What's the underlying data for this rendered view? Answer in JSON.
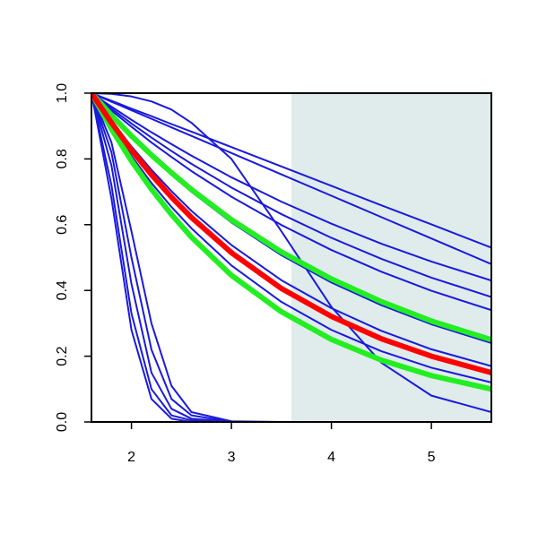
{
  "chart_data": {
    "type": "line",
    "x": [
      1.6,
      1.8,
      2.0,
      2.2,
      2.4,
      2.6,
      3.0,
      3.5,
      4.0,
      4.5,
      5.0,
      5.6
    ],
    "xlim": [
      1.6,
      5.6
    ],
    "ylim": [
      0,
      1
    ],
    "xticks": [
      2,
      3,
      4,
      5
    ],
    "yticks": [
      {
        "value": 0,
        "label": "0.0"
      },
      {
        "value": 0.2,
        "label": "0.2"
      },
      {
        "value": 0.4,
        "label": "0.4"
      },
      {
        "value": 0.6,
        "label": "0.6"
      },
      {
        "value": 0.8,
        "label": "0.8"
      },
      {
        "value": 1,
        "label": "1.0"
      }
    ],
    "shaded_region": {
      "x": [
        3.6,
        5.6
      ],
      "color": "#dfeceb"
    },
    "series": [
      {
        "color": "#1a1adb",
        "values": [
          1,
          0.78,
          0.42,
          0.15,
          0.04,
          0.01,
          0,
          0,
          0,
          0,
          0,
          0
        ]
      },
      {
        "color": "#1a1adb",
        "values": [
          1,
          0.82,
          0.5,
          0.22,
          0.07,
          0.02,
          0,
          0,
          0,
          0,
          0,
          0
        ]
      },
      {
        "color": "#1a1adb",
        "values": [
          1,
          0.72,
          0.33,
          0.1,
          0.02,
          0.005,
          0,
          0,
          0,
          0,
          0,
          0
        ]
      },
      {
        "color": "#1a1adb",
        "values": [
          1,
          0.85,
          0.58,
          0.3,
          0.11,
          0.03,
          0.002,
          0,
          0,
          0,
          0,
          0
        ]
      },
      {
        "color": "#1a1adb",
        "values": [
          1,
          0.68,
          0.28,
          0.07,
          0.01,
          0,
          0,
          0,
          0,
          0,
          0,
          0
        ]
      },
      {
        "color": "#1a1adb",
        "values": [
          1,
          0.977,
          0.953,
          0.93,
          0.906,
          0.883,
          0.836,
          0.777,
          0.718,
          0.659,
          0.601,
          0.53
        ]
      },
      {
        "color": "#1a1adb",
        "values": [
          1,
          0.974,
          0.948,
          0.922,
          0.896,
          0.87,
          0.818,
          0.753,
          0.688,
          0.623,
          0.558,
          0.48
        ]
      },
      {
        "color": "#1a1adb",
        "values": [
          1,
          0.959,
          0.919,
          0.881,
          0.845,
          0.81,
          0.744,
          0.67,
          0.603,
          0.542,
          0.488,
          0.43
        ]
      },
      {
        "color": "#1a1adb",
        "values": [
          1,
          0.953,
          0.908,
          0.865,
          0.824,
          0.785,
          0.713,
          0.632,
          0.56,
          0.496,
          0.439,
          0.38
        ]
      },
      {
        "color": "#1a1adb",
        "values": [
          1,
          0.947,
          0.898,
          0.85,
          0.806,
          0.763,
          0.685,
          0.599,
          0.523,
          0.457,
          0.399,
          0.34
        ]
      },
      {
        "color": "#1a1adb",
        "values": [
          1,
          0.931,
          0.867,
          0.807,
          0.752,
          0.7,
          0.607,
          0.507,
          0.424,
          0.355,
          0.297,
          0.24
        ]
      },
      {
        "color": "#1a1adb",
        "values": [
          1,
          0.915,
          0.838,
          0.767,
          0.702,
          0.642,
          0.538,
          0.431,
          0.346,
          0.277,
          0.221,
          0.17
        ]
      },
      {
        "color": "#1a1adb",
        "values": [
          1,
          0.899,
          0.809,
          0.727,
          0.654,
          0.589,
          0.476,
          0.365,
          0.28,
          0.215,
          0.165,
          0.12
        ]
      },
      {
        "color": "#1a1adb",
        "values": [
          1,
          0.998,
          0.99,
          0.975,
          0.95,
          0.91,
          0.8,
          0.58,
          0.35,
          0.18,
          0.08,
          0.03
        ]
      },
      {
        "color": "#22ee22",
        "values": [
          1,
          0.933,
          0.87,
          0.812,
          0.758,
          0.707,
          0.615,
          0.517,
          0.435,
          0.366,
          0.307,
          0.25
        ]
      },
      {
        "color": "#22ee22",
        "values": [
          1,
          0.891,
          0.794,
          0.708,
          0.631,
          0.562,
          0.446,
          0.335,
          0.251,
          0.188,
          0.141,
          0.1
        ]
      },
      {
        "color": "#ff0000",
        "values": [
          1,
          0.91,
          0.827,
          0.752,
          0.684,
          0.622,
          0.515,
          0.406,
          0.321,
          0.253,
          0.2,
          0.15
        ]
      }
    ]
  }
}
